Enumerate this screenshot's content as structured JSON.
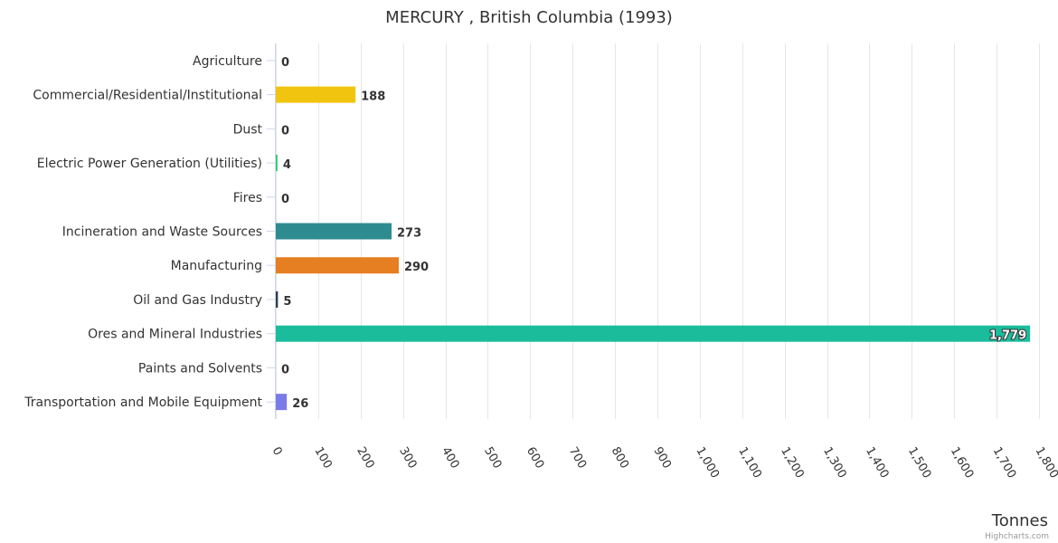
{
  "chart_data": {
    "type": "bar",
    "orientation": "horizontal",
    "title": "MERCURY , British Columbia (1993)",
    "xlabel": "",
    "ylabel": "Tonnes",
    "categories": [
      "Agriculture",
      "Commercial/Residential/Institutional",
      "Dust",
      "Electric Power Generation (Utilities)",
      "Fires",
      "Incineration and Waste Sources",
      "Manufacturing",
      "Oil and Gas Industry",
      "Ores and Mineral Industries",
      "Paints and Solvents",
      "Transportation and Mobile Equipment"
    ],
    "values": [
      0,
      188,
      0,
      4,
      0,
      273,
      290,
      5,
      1779,
      0,
      26
    ],
    "value_labels": [
      "0",
      "188",
      "0",
      "4",
      "0",
      "273",
      "290",
      "5",
      "1,779",
      "0",
      "26"
    ],
    "colors": [
      "#544fc5",
      "#f1c40f",
      "#2b908f",
      "#2ecc71",
      "#f15c80",
      "#2e8b8f",
      "#e67e22",
      "#2c3e50",
      "#1abc9c",
      "#8e44ad",
      "#7b7be8"
    ],
    "xlim": [
      0,
      1800
    ],
    "ticks": [
      0,
      100,
      200,
      300,
      400,
      500,
      600,
      700,
      800,
      900,
      1000,
      1100,
      1200,
      1300,
      1400,
      1500,
      1600,
      1700,
      1800
    ],
    "tick_labels": [
      "0",
      "100",
      "200",
      "300",
      "400",
      "500",
      "600",
      "700",
      "800",
      "900",
      "1,000",
      "1,100",
      "1,200",
      "1,300",
      "1,400",
      "1,500",
      "1,600",
      "1,700",
      "1,800"
    ],
    "grid": true,
    "legend": "none"
  },
  "credits": "Highcharts.com"
}
